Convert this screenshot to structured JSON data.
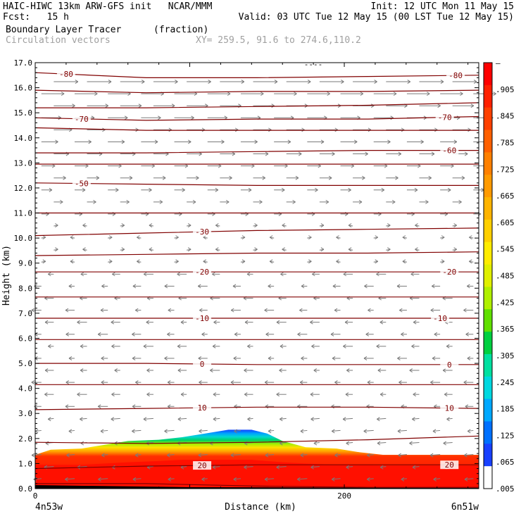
{
  "header": {
    "line1_left": "HAIC-HIWC 13km ARW-GFS init   NCAR/MMM",
    "line1_right": "Init: 12 UTC Mon 11 May 15",
    "line2_left": "Fcst:   15 h",
    "line2_right": "Valid: 03 UTC Tue 12 May 15 (00 LST Tue 12 May 15)",
    "line3_field": "Boundary Layer Tracer",
    "line3_units": "(fraction)",
    "line4_field": "Circulation vectors",
    "line4_xy": "XY= 259.5, 91.6 to 274.6,110.2"
  },
  "colors": {
    "contour": "#800000",
    "vector": "#7a7a7a",
    "label_gray": "#a0a0a0"
  },
  "chart_data": {
    "type": "cross-section",
    "xlabel": "Distance (km)",
    "ylabel": "Height (km)",
    "xlim": [
      0,
      287
    ],
    "ylim": [
      0,
      17
    ],
    "x_ticks": [
      "0",
      "200"
    ],
    "x_tick_values": [
      0,
      200
    ],
    "endpoint_left": "4n53w",
    "endpoint_right": "6n51w",
    "y_ticks": [
      "0.0",
      "1.0",
      "2.0",
      "3.0",
      "4.0",
      "5.0",
      "6.0",
      "7.0",
      "8.0",
      "9.0",
      "10.0",
      "11.0",
      "12.0",
      "13.0",
      "14.0",
      "15.0",
      "16.0",
      "17.0"
    ],
    "colorbar": {
      "labels": [
        "–",
        ".905",
        ".845",
        ".785",
        ".725",
        ".665",
        ".605",
        ".545",
        ".485",
        ".425",
        ".365",
        ".305",
        ".245",
        ".185",
        ".125",
        ".065",
        ".005"
      ],
      "colors": [
        "#ff0000",
        "#ff2000",
        "#ff4000",
        "#ff6000",
        "#ff8000",
        "#ff9a00",
        "#ffb400",
        "#ffd000",
        "#ffec00",
        "#e0f000",
        "#b0f000",
        "#60e000",
        "#00d040",
        "#00e0a0",
        "#00d8e0",
        "#00a8ff",
        "#0070ff",
        "#1840ff",
        "#ffffff"
      ]
    },
    "tracer_top_km": {
      "x_km": [
        0,
        10,
        30,
        45,
        60,
        80,
        95,
        110,
        125,
        140,
        150,
        160,
        175,
        195,
        210,
        225,
        240,
        260,
        287
      ],
      "blue_top": [
        1.35,
        1.55,
        1.6,
        1.75,
        1.9,
        1.95,
        2.05,
        2.2,
        2.35,
        2.35,
        2.2,
        1.9,
        1.65,
        1.6,
        1.45,
        1.35,
        1.35,
        1.35,
        1.35
      ],
      "red_top": [
        0.95,
        0.95,
        0.95,
        1.0,
        1.05,
        1.1,
        1.15,
        1.15,
        1.15,
        1.15,
        1.1,
        1.05,
        1.0,
        0.95,
        0.95,
        0.92,
        0.92,
        0.92,
        0.92
      ]
    },
    "temperature_contours": [
      {
        "z": [
          16.6,
          16.4,
          16.4,
          16.45,
          16.5
        ],
        "labels": [
          {
            "text": "-80",
            "x": 20
          },
          {
            "text": "-80",
            "x": 272
          }
        ]
      },
      {
        "z": [
          15.9,
          15.8,
          15.85,
          15.85,
          15.9
        ],
        "labels": []
      },
      {
        "z": [
          15.2,
          15.2,
          15.25,
          15.3,
          15.4
        ],
        "labels": []
      },
      {
        "z": [
          14.8,
          14.7,
          14.75,
          14.75,
          14.85
        ],
        "labels": [
          {
            "text": "-70",
            "x": 30
          },
          {
            "text": "-70",
            "x": 265
          }
        ]
      },
      {
        "z": [
          14.4,
          14.3,
          14.3,
          14.3,
          14.3
        ],
        "labels": []
      },
      {
        "z": [
          13.4,
          13.4,
          13.45,
          13.5,
          13.5
        ],
        "labels": [
          {
            "text": "-60",
            "x": 268
          }
        ]
      },
      {
        "z": [
          12.95,
          12.95,
          12.95,
          12.95,
          12.95
        ],
        "labels": []
      },
      {
        "z": [
          12.2,
          12.15,
          12.1,
          12.1,
          12.1
        ],
        "labels": [
          {
            "text": "-50",
            "x": 30
          }
        ]
      },
      {
        "z": [
          11.0,
          11.0,
          11.0,
          11.0,
          11.0
        ],
        "labels": []
      },
      {
        "z": [
          10.1,
          10.2,
          10.3,
          10.35,
          10.4
        ],
        "labels": [
          {
            "text": "-30",
            "x": 108
          }
        ]
      },
      {
        "z": [
          9.3,
          9.35,
          9.4,
          9.4,
          9.45
        ],
        "labels": []
      },
      {
        "z": [
          8.65,
          8.65,
          8.65,
          8.65,
          8.65
        ],
        "labels": [
          {
            "text": "-20",
            "x": 108
          },
          {
            "text": "-20",
            "x": 268
          }
        ]
      },
      {
        "z": [
          7.65,
          7.65,
          7.65,
          7.65,
          7.65
        ],
        "labels": []
      },
      {
        "z": [
          6.8,
          6.8,
          6.8,
          6.8,
          6.8
        ],
        "labels": [
          {
            "text": "-10",
            "x": 108
          },
          {
            "text": "-10",
            "x": 262
          }
        ]
      },
      {
        "z": [
          5.95,
          5.95,
          5.95,
          5.95,
          5.95
        ],
        "labels": []
      },
      {
        "z": [
          5.0,
          5.0,
          4.95,
          4.95,
          4.95
        ],
        "labels": [
          {
            "text": "0",
            "x": 108
          },
          {
            "text": "0",
            "x": 268
          }
        ]
      },
      {
        "z": [
          4.15,
          4.15,
          4.15,
          4.15,
          4.15
        ],
        "labels": []
      },
      {
        "z": [
          3.15,
          3.2,
          3.25,
          3.25,
          3.2
        ],
        "labels": [
          {
            "text": "10",
            "x": 108
          },
          {
            "text": "10",
            "x": 268
          }
        ]
      },
      {
        "z": [
          1.85,
          1.8,
          1.85,
          1.95,
          2.1
        ],
        "labels": []
      },
      {
        "z": [
          0.8,
          0.9,
          0.95,
          0.95,
          0.95
        ],
        "labels": [
          {
            "text": "20",
            "x": 108
          },
          {
            "text": "20",
            "x": 268
          }
        ]
      },
      {
        "z": [
          0.2,
          0.2,
          0.1,
          0.05,
          0.05
        ],
        "labels": []
      }
    ],
    "top_label": "----"
  }
}
